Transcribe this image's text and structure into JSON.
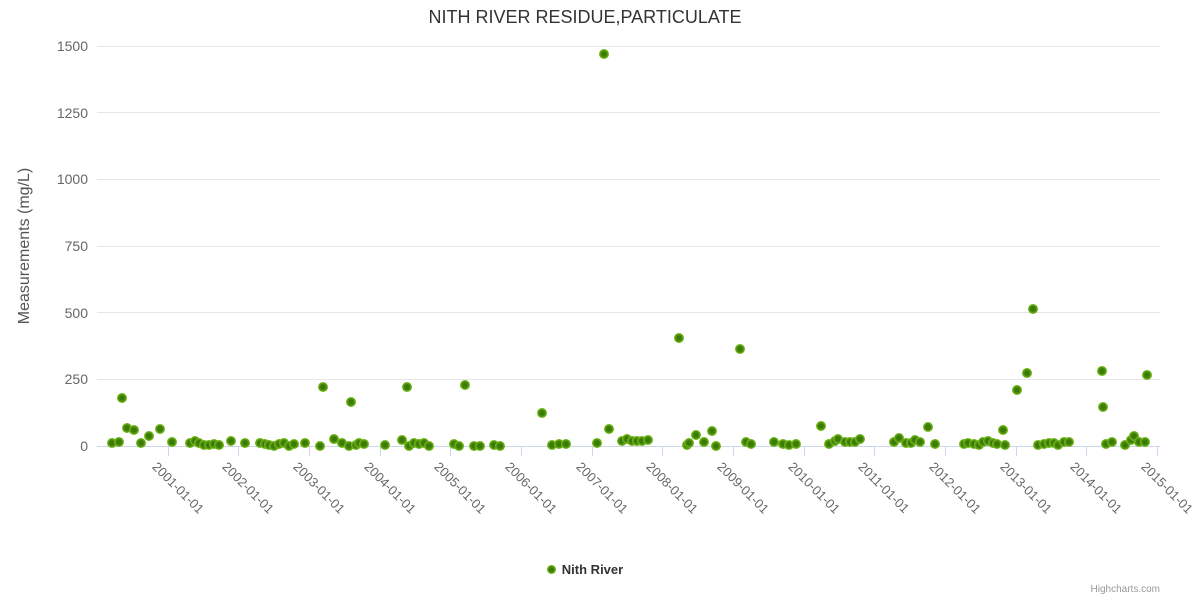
{
  "credit": "Highcharts.com",
  "colors": {
    "title": "#333333",
    "axis_label": "#666666",
    "gridline": "#e6e6e6",
    "axis_line": "#ccd6eb",
    "legend_text": "#333333",
    "credit": "#999999",
    "marker_inner": "#3b7a05",
    "marker_outer": "#7cc41f",
    "background": "#ffffff"
  },
  "chart_data": {
    "type": "scatter",
    "title": "NITH RIVER RESIDUE,PARTICULATE",
    "xlabel": "",
    "ylabel": "Measurements (mg/L)",
    "ylim": [
      0,
      1500
    ],
    "xlim": [
      2000,
      2015.04
    ],
    "y_ticks": [
      0,
      250,
      500,
      750,
      1000,
      1250,
      1500
    ],
    "x_ticks": [
      2001,
      2002,
      2003,
      2004,
      2005,
      2006,
      2007,
      2008,
      2009,
      2010,
      2011,
      2012,
      2013,
      2014,
      2015
    ],
    "x_tick_labels": [
      "2001-01-01",
      "2002-01-01",
      "2003-01-01",
      "2004-01-01",
      "2005-01-01",
      "2006-01-01",
      "2007-01-01",
      "2008-01-01",
      "2009-01-01",
      "2010-01-01",
      "2011-01-01",
      "2012-01-01",
      "2013-01-01",
      "2014-01-01",
      "2015-01-01"
    ],
    "grid": "horizontal-only",
    "legend_position": "bottom-center",
    "series": [
      {
        "name": "Nith River",
        "color": "#7cc41f",
        "points": [
          [
            2000.21,
            11
          ],
          [
            2000.31,
            15
          ],
          [
            2000.36,
            180
          ],
          [
            2000.42,
            68
          ],
          [
            2000.53,
            60
          ],
          [
            2000.62,
            11
          ],
          [
            2000.73,
            38
          ],
          [
            2000.89,
            64
          ],
          [
            2001.06,
            15
          ],
          [
            2001.31,
            11
          ],
          [
            2001.38,
            19
          ],
          [
            2001.44,
            11
          ],
          [
            2001.52,
            4
          ],
          [
            2001.59,
            4
          ],
          [
            2001.66,
            8
          ],
          [
            2001.73,
            4
          ],
          [
            2001.9,
            19
          ],
          [
            2002.09,
            11
          ],
          [
            2002.3,
            11
          ],
          [
            2002.37,
            8
          ],
          [
            2002.44,
            4
          ],
          [
            2002.51,
            0
          ],
          [
            2002.58,
            8
          ],
          [
            2002.65,
            11
          ],
          [
            2002.72,
            0
          ],
          [
            2002.79,
            8
          ],
          [
            2002.94,
            11
          ],
          [
            2003.16,
            0
          ],
          [
            2003.2,
            220
          ],
          [
            2003.35,
            26
          ],
          [
            2003.46,
            11
          ],
          [
            2003.57,
            0
          ],
          [
            2003.6,
            165
          ],
          [
            2003.66,
            4
          ],
          [
            2003.7,
            11
          ],
          [
            2003.78,
            8
          ],
          [
            2004.07,
            4
          ],
          [
            2004.31,
            22
          ],
          [
            2004.39,
            222
          ],
          [
            2004.42,
            0
          ],
          [
            2004.49,
            11
          ],
          [
            2004.56,
            8
          ],
          [
            2004.63,
            11
          ],
          [
            2004.7,
            0
          ],
          [
            2005.05,
            8
          ],
          [
            2005.12,
            0
          ],
          [
            2005.21,
            228
          ],
          [
            2005.34,
            0
          ],
          [
            2005.42,
            0
          ],
          [
            2005.62,
            4
          ],
          [
            2005.7,
            0
          ],
          [
            2006.3,
            125
          ],
          [
            2006.44,
            4
          ],
          [
            2006.54,
            8
          ],
          [
            2006.64,
            8
          ],
          [
            2007.07,
            11
          ],
          [
            2007.17,
            1470
          ],
          [
            2007.24,
            64
          ],
          [
            2007.43,
            19
          ],
          [
            2007.5,
            26
          ],
          [
            2007.57,
            19
          ],
          [
            2007.64,
            19
          ],
          [
            2007.71,
            19
          ],
          [
            2007.79,
            22
          ],
          [
            2008.23,
            405
          ],
          [
            2008.35,
            4
          ],
          [
            2008.37,
            12
          ],
          [
            2008.47,
            42
          ],
          [
            2008.59,
            15
          ],
          [
            2008.7,
            56
          ],
          [
            2008.76,
            0
          ],
          [
            2009.1,
            365
          ],
          [
            2009.18,
            15
          ],
          [
            2009.25,
            8
          ],
          [
            2009.58,
            15
          ],
          [
            2009.7,
            8
          ],
          [
            2009.79,
            4
          ],
          [
            2009.89,
            8
          ],
          [
            2010.24,
            75
          ],
          [
            2010.35,
            8
          ],
          [
            2010.44,
            19
          ],
          [
            2010.49,
            26
          ],
          [
            2010.58,
            15
          ],
          [
            2010.66,
            15
          ],
          [
            2010.73,
            15
          ],
          [
            2010.79,
            26
          ],
          [
            2011.27,
            15
          ],
          [
            2011.35,
            30
          ],
          [
            2011.44,
            11
          ],
          [
            2011.52,
            11
          ],
          [
            2011.58,
            22
          ],
          [
            2011.65,
            15
          ],
          [
            2011.76,
            72
          ],
          [
            2011.85,
            8
          ],
          [
            2012.26,
            8
          ],
          [
            2012.33,
            11
          ],
          [
            2012.41,
            8
          ],
          [
            2012.48,
            4
          ],
          [
            2012.54,
            14
          ],
          [
            2012.61,
            18
          ],
          [
            2012.68,
            11
          ],
          [
            2012.74,
            8
          ],
          [
            2012.82,
            60
          ],
          [
            2012.85,
            4
          ],
          [
            2013.02,
            210
          ],
          [
            2013.16,
            275
          ],
          [
            2013.25,
            515
          ],
          [
            2013.32,
            4
          ],
          [
            2013.4,
            8
          ],
          [
            2013.47,
            11
          ],
          [
            2013.54,
            11
          ],
          [
            2013.6,
            4
          ],
          [
            2013.68,
            15
          ],
          [
            2013.75,
            14
          ],
          [
            2014.22,
            280
          ],
          [
            2014.23,
            145
          ],
          [
            2014.28,
            8
          ],
          [
            2014.36,
            15
          ],
          [
            2014.55,
            4
          ],
          [
            2014.63,
            22
          ],
          [
            2014.67,
            38
          ],
          [
            2014.74,
            15
          ],
          [
            2014.83,
            15
          ],
          [
            2014.86,
            265
          ]
        ]
      }
    ]
  }
}
